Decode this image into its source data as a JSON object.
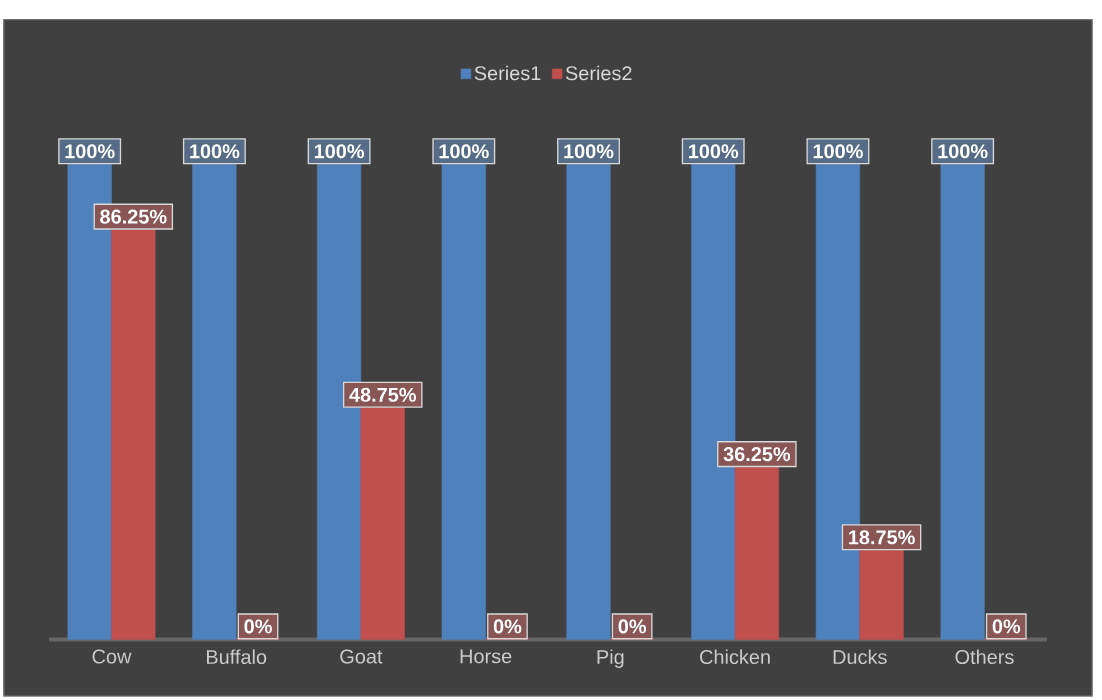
{
  "chart_data": {
    "type": "bar",
    "categories": [
      "Cow",
      "Buffalo",
      "Goat",
      "Horse",
      "Pig",
      "Chicken",
      "Ducks",
      "Others"
    ],
    "series": [
      {
        "name": "Series1",
        "color": "#4f81bd",
        "values": [
          100,
          100,
          100,
          100,
          100,
          100,
          100,
          100
        ],
        "value_labels": [
          "100%",
          "100%",
          "100%",
          "100%",
          "100%",
          "100%",
          "100%",
          "100%"
        ]
      },
      {
        "name": "Series2",
        "color": "#c0504d",
        "values": [
          86.25,
          0,
          48.75,
          0,
          0,
          36.25,
          18.75,
          0
        ],
        "value_labels": [
          "86.25%",
          "0%",
          "48.75%",
          "0%",
          "0%",
          "36.25%",
          "18.75%",
          "0%"
        ]
      }
    ],
    "ylim": [
      0,
      100
    ],
    "legend": "top"
  }
}
